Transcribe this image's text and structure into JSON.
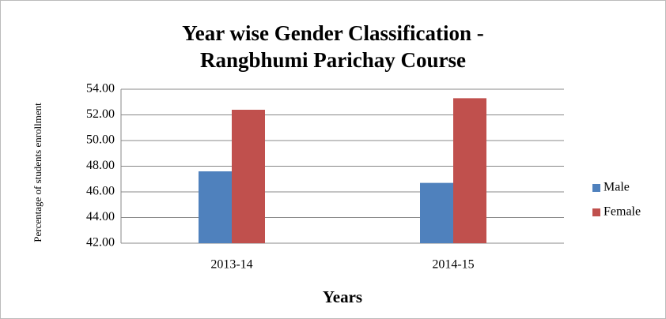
{
  "chart_data": {
    "type": "bar",
    "title": "Year wise Gender Classification - Rangbhumi Parichay Course",
    "x_label": "Years",
    "y_label": "Percentage of students enrollment",
    "categories": [
      "2013-14",
      "2014-15"
    ],
    "series": [
      {
        "name": "Male",
        "color": "#4f81bd",
        "values": [
          47.6,
          46.7
        ]
      },
      {
        "name": "Female",
        "color": "#c0504d",
        "values": [
          52.4,
          53.3
        ]
      }
    ],
    "ylim": [
      42,
      54
    ],
    "yticks": [
      {
        "value": 42,
        "label": "42.00"
      },
      {
        "value": 44,
        "label": "44.00"
      },
      {
        "value": 46,
        "label": "46.00"
      },
      {
        "value": 48,
        "label": "48.00"
      },
      {
        "value": 50,
        "label": "50.00"
      },
      {
        "value": 52,
        "label": "52.00"
      },
      {
        "value": 54,
        "label": "54.00"
      }
    ],
    "grid": true,
    "legend": "right"
  }
}
